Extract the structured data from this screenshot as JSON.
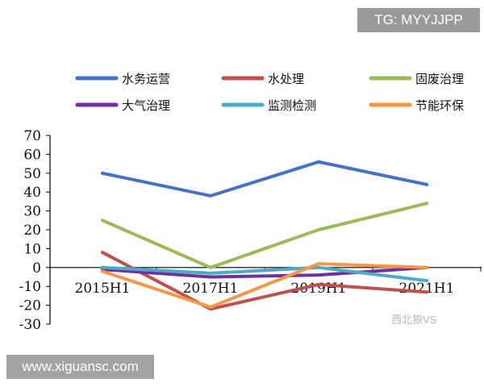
{
  "watermarks": {
    "top_right": "TG: MYYJJPP",
    "bottom_left": "www.xiguansc.com",
    "bottom_right": "西北狼VS"
  },
  "chart_data": {
    "type": "line",
    "title": "",
    "xlabel": "",
    "ylabel": "",
    "categories": [
      "2015H1",
      "2017H1",
      "2019H1",
      "2021H1"
    ],
    "ylim": [
      -30,
      70
    ],
    "yticks": [
      70,
      60,
      50,
      40,
      30,
      20,
      10,
      0,
      -10,
      -20,
      -30
    ],
    "grid": false,
    "legend_position": "top",
    "series": [
      {
        "name": "水务运营",
        "color": "#4472c4",
        "values": [
          50,
          38,
          56,
          44
        ]
      },
      {
        "name": "水处理",
        "color": "#c0504d",
        "values": [
          8,
          -22,
          -9,
          -13
        ]
      },
      {
        "name": "固废治理",
        "color": "#9bbb59",
        "values": [
          25,
          0,
          20,
          34
        ]
      },
      {
        "name": "大气治理",
        "color": "#7030a0",
        "values": [
          -1,
          -5,
          -4,
          0
        ]
      },
      {
        "name": "监测检测",
        "color": "#4bacc6",
        "values": [
          0,
          -3,
          0,
          -7
        ]
      },
      {
        "name": "节能环保",
        "color": "#f79646",
        "values": [
          -2,
          -21,
          2,
          0
        ]
      }
    ]
  }
}
